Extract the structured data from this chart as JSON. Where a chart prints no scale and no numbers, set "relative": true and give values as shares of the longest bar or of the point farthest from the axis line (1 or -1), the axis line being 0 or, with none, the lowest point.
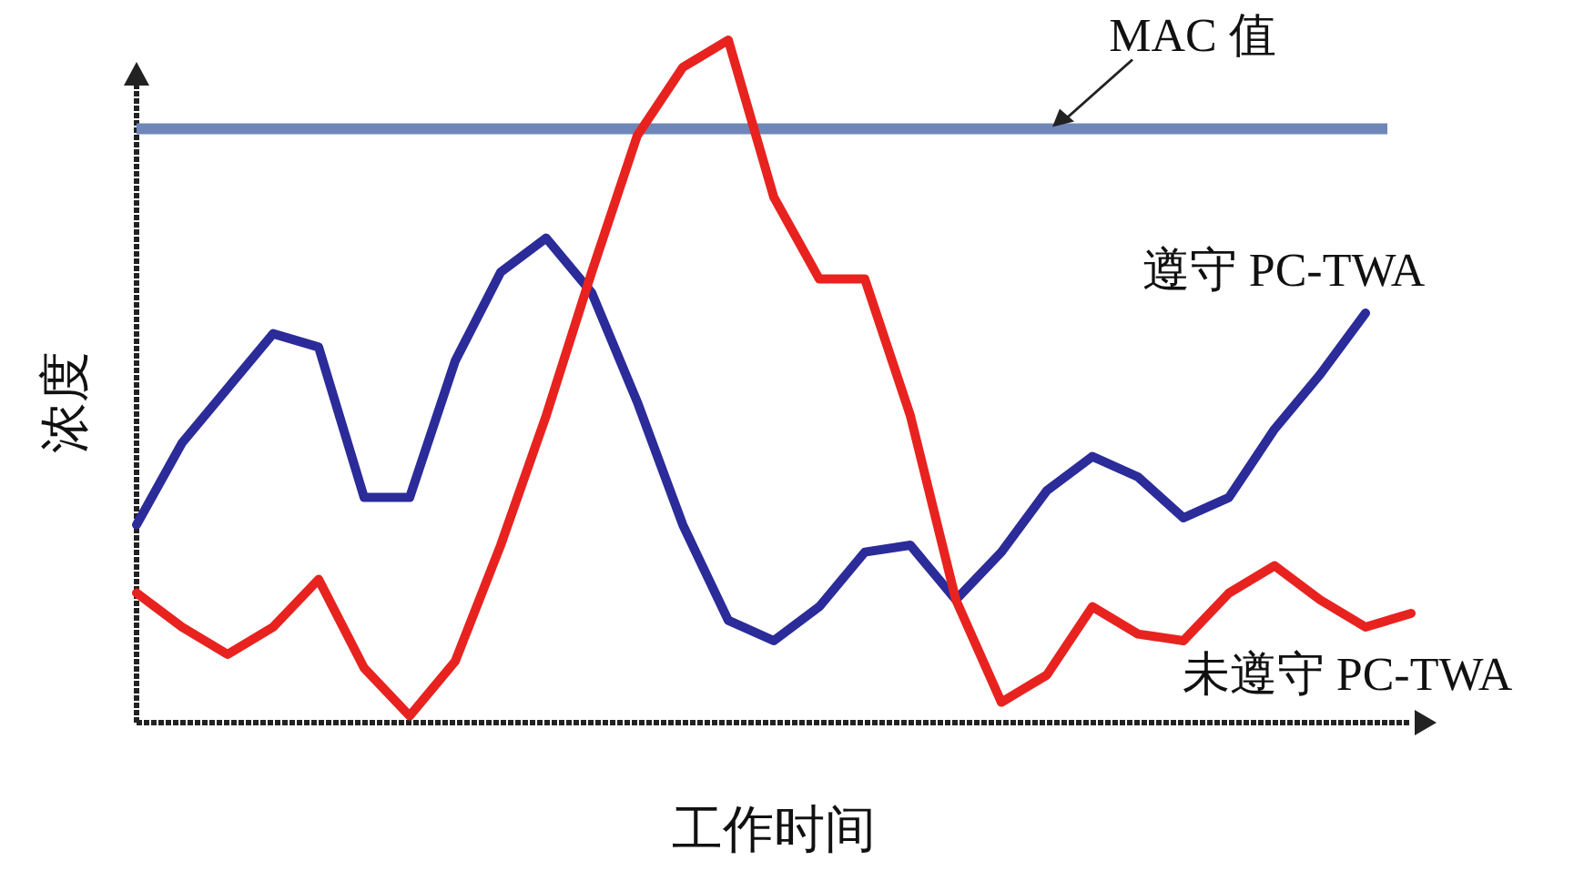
{
  "chart_data": {
    "type": "line",
    "relative": true,
    "xlabel": "工作时间",
    "ylabel": "浓度",
    "categories": [
      null,
      null,
      null,
      null,
      null,
      null,
      null,
      null,
      null,
      null,
      null,
      null,
      null,
      null,
      null,
      null,
      null,
      null,
      null,
      null,
      null,
      null,
      null,
      null,
      null,
      null,
      null,
      null,
      null
    ],
    "series": [
      {
        "name": "遵守 PC-TWA",
        "color": "#2b2b9a",
        "values": [
          0.29,
          0.41,
          0.49,
          0.57,
          0.55,
          0.33,
          0.33,
          0.53,
          0.66,
          0.71,
          0.63,
          0.47,
          0.29,
          0.15,
          0.12,
          0.17,
          0.25,
          0.26,
          0.18,
          0.25,
          0.34,
          0.39,
          0.36,
          0.3,
          0.33,
          0.43,
          0.51,
          0.6,
          null
        ]
      },
      {
        "name": "未遵守 PC-TWA",
        "color": "#e8231f",
        "values": [
          0.19,
          0.14,
          0.1,
          0.14,
          0.21,
          0.08,
          0.01,
          0.09,
          0.26,
          0.45,
          0.66,
          0.86,
          0.96,
          1.0,
          0.77,
          0.65,
          0.65,
          0.45,
          0.18,
          0.03,
          0.07,
          0.17,
          0.13,
          0.12,
          0.19,
          0.23,
          0.18,
          0.14,
          0.16
        ]
      }
    ],
    "ref_lines": [
      {
        "axis": "y",
        "value": 0.87,
        "label": "MAC 值",
        "color": "#6f87b8"
      }
    ],
    "marker": "none",
    "line_style": "solid"
  }
}
